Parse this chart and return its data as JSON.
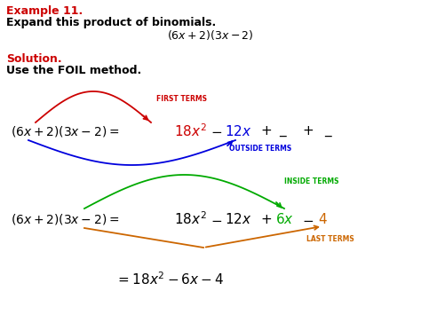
{
  "bg_color": "#ffffff",
  "red_color": "#cc0000",
  "blue_color": "#0000dd",
  "green_color": "#00aa00",
  "orange_color": "#cc6600",
  "black_color": "#000000",
  "example_text": "Example 11.",
  "expand_text": "Expand this product of binomials.",
  "solution_text": "Solution.",
  "foil_text": "Use the FOIL method.",
  "first_terms_label": "FIRST TERMS",
  "outside_terms_label": "OUTSIDE TERMS",
  "inside_terms_label": "INSIDE TERMS",
  "last_terms_label": "LAST TERMS",
  "figw": 4.74,
  "figh": 3.55,
  "dpi": 100
}
